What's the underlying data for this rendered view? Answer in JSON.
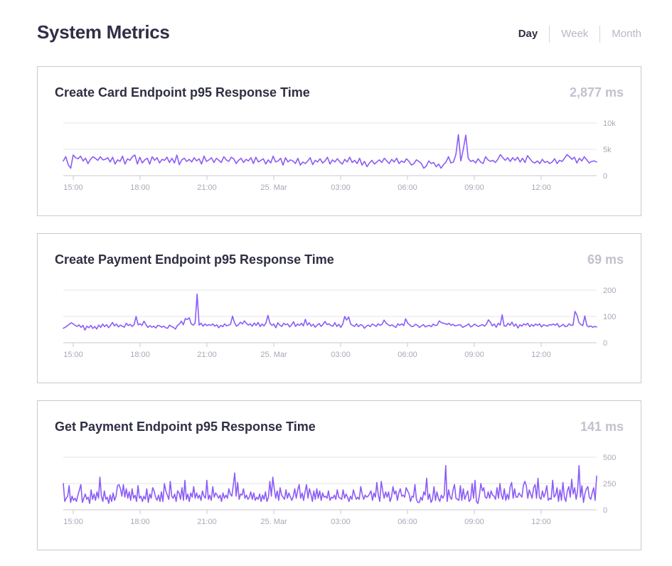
{
  "page": {
    "title": "System Metrics"
  },
  "range_tabs": [
    {
      "label": "Day",
      "active": true
    },
    {
      "label": "Week",
      "active": false
    },
    {
      "label": "Month",
      "active": false
    }
  ],
  "colors": {
    "line": "#8b5cf6",
    "grid": "#e6e6ec",
    "axis": "#c9c9d1",
    "muted": "#c2c2cf"
  },
  "chart_data": [
    {
      "type": "line",
      "title": "Create Card Endpoint p95 Response Time",
      "current_value": "2,877 ms",
      "x_ticks": [
        "15:00",
        "18:00",
        "21:00",
        "25. Mar",
        "03:00",
        "06:00",
        "09:00",
        "12:00"
      ],
      "y_ticks": [
        "0",
        "5k",
        "10k"
      ],
      "ylim": [
        0,
        10000
      ],
      "series": [
        {
          "values": [
            2800,
            3600,
            2100,
            1400,
            3900,
            3400,
            3200,
            3700,
            2800,
            3300,
            2300,
            3100,
            3600,
            3300,
            2900,
            3600,
            3000,
            3100,
            3400,
            2600,
            3500,
            2200,
            3000,
            2700,
            3700,
            2200,
            3200,
            2900,
            3600,
            3900,
            2200,
            3500,
            2400,
            3000,
            3300,
            2200,
            3600,
            2900,
            3400,
            2400,
            3100,
            2900,
            3500,
            2500,
            3300,
            2400,
            3900,
            2100,
            3000,
            3300,
            2700,
            3100,
            2600,
            3400,
            2800,
            3200,
            2200,
            3700,
            2700,
            3000,
            3400,
            2500,
            3300,
            2900,
            2500,
            3600,
            3000,
            2700,
            3500,
            3200,
            2300,
            2900,
            3300,
            2500,
            3100,
            2800,
            3400,
            2300,
            3500,
            2600,
            2900,
            3200,
            2200,
            3000,
            2400,
            3700,
            2600,
            2800,
            3300,
            2000,
            3400,
            2600,
            3000,
            2800,
            2300,
            3300,
            2000,
            2600,
            2300,
            2800,
            3400,
            2100,
            2900,
            2600,
            3200,
            2400,
            2800,
            3500,
            2200,
            3000,
            2600,
            3200,
            2600,
            2200,
            3100,
            2600,
            3500,
            2500,
            2900,
            2300,
            3300,
            2000,
            2700,
            1700,
            2400,
            2900,
            2200,
            2600,
            3000,
            2500,
            3300,
            2800,
            2300,
            3100,
            2600,
            3300,
            2300,
            2800,
            2500,
            3200,
            2700,
            2000,
            2300,
            3000,
            2700,
            2300,
            1400,
            1800,
            2800,
            2300,
            2500,
            1700,
            2200,
            1400,
            2100,
            2600,
            3600,
            2400,
            2600,
            4000,
            7800,
            2800,
            5000,
            7700,
            3300,
            2700,
            2900,
            2400,
            3200,
            2600,
            2300,
            3600,
            3000,
            2700,
            2900,
            2500,
            3100,
            4000,
            3400,
            2900,
            3400,
            2700,
            3400,
            2900,
            3500,
            2600,
            3300,
            2500,
            3800,
            3200,
            2600,
            2400,
            2800,
            2300,
            3100,
            2500,
            2700,
            2300,
            2600,
            3200,
            2300,
            2900,
            2700,
            3300,
            4000,
            3600,
            3100,
            3500,
            2400,
            3300,
            2800,
            3600,
            3000,
            2400,
            2700,
            2800,
            2600
          ]
        }
      ]
    },
    {
      "type": "line",
      "title": "Create Payment Endpoint p95 Response Time",
      "current_value": "69 ms",
      "x_ticks": [
        "15:00",
        "18:00",
        "21:00",
        "25. Mar",
        "03:00",
        "06:00",
        "09:00",
        "12:00"
      ],
      "y_ticks": [
        "0",
        "100",
        "200"
      ],
      "ylim": [
        0,
        200
      ],
      "series": [
        {
          "values": [
            55,
            59,
            64,
            70,
            76,
            72,
            66,
            62,
            68,
            58,
            66,
            48,
            63,
            57,
            66,
            54,
            62,
            52,
            67,
            58,
            71,
            61,
            69,
            57,
            66,
            77,
            64,
            71,
            60,
            67,
            63,
            59,
            74,
            65,
            70,
            62,
            69,
            100,
            68,
            72,
            66,
            82,
            69,
            58,
            65,
            59,
            63,
            56,
            66,
            64,
            59,
            63,
            57,
            55,
            67,
            62,
            58,
            52,
            66,
            71,
            82,
            68,
            92,
            88,
            95,
            72,
            67,
            75,
            185,
            67,
            74,
            63,
            71,
            65,
            69,
            66,
            71,
            63,
            68,
            57,
            66,
            61,
            72,
            64,
            67,
            70,
            101,
            76,
            63,
            68,
            78,
            71,
            83,
            74,
            67,
            72,
            63,
            75,
            66,
            77,
            62,
            71,
            64,
            76,
            104,
            74,
            66,
            71,
            57,
            76,
            67,
            62,
            74,
            68,
            72,
            60,
            68,
            80,
            62,
            71,
            66,
            74,
            64,
            89,
            67,
            76,
            63,
            70,
            59,
            67,
            73,
            62,
            70,
            81,
            69,
            72,
            65,
            63,
            76,
            62,
            70,
            58,
            71,
            100,
            86,
            98,
            71,
            66,
            62,
            72,
            61,
            69,
            66,
            55,
            63,
            67,
            61,
            71,
            67,
            62,
            72,
            66,
            70,
            86,
            75,
            69,
            64,
            68,
            63,
            58,
            72,
            66,
            72,
            65,
            91,
            74,
            68,
            61,
            63,
            70,
            66,
            58,
            64,
            69,
            60,
            64,
            66,
            61,
            71,
            65,
            67,
            83,
            77,
            74,
            73,
            69,
            74,
            66,
            70,
            64,
            66,
            68,
            67,
            58,
            63,
            66,
            72,
            60,
            64,
            71,
            65,
            62,
            66,
            69,
            63,
            70,
            87,
            78,
            64,
            71,
            59,
            74,
            67,
            106,
            64,
            63,
            74,
            66,
            78,
            63,
            71,
            56,
            68,
            63,
            72,
            67,
            74,
            61,
            69,
            63,
            71,
            66,
            72,
            60,
            68,
            66,
            63,
            69,
            67,
            71,
            66,
            73,
            60,
            64,
            70,
            61,
            63,
            72,
            66,
            67,
            119,
            106,
            77,
            69,
            65,
            102,
            66,
            60,
            64,
            59,
            62,
            60
          ]
        }
      ]
    },
    {
      "type": "line",
      "title": "Get Payment Endpoint p95 Response Time",
      "current_value": "141 ms",
      "x_ticks": [
        "15:00",
        "18:00",
        "21:00",
        "25. Mar",
        "03:00",
        "06:00",
        "09:00",
        "12:00"
      ],
      "y_ticks": [
        "0",
        "250",
        "500"
      ],
      "ylim": [
        0,
        500
      ],
      "series": [
        {
          "values": [
            250,
            80,
            110,
            130,
            230,
            70,
            130,
            90,
            110,
            80,
            140,
            190,
            240,
            70,
            110,
            150,
            100,
            120,
            60,
            190,
            100,
            150,
            90,
            170,
            110,
            310,
            130,
            80,
            180,
            100,
            120,
            60,
            140,
            80,
            160,
            90,
            130,
            230,
            240,
            200,
            130,
            240,
            120,
            200,
            110,
            170,
            90,
            200,
            110,
            140,
            80,
            230,
            110,
            130,
            80,
            130,
            100,
            200,
            70,
            150,
            110,
            210,
            180,
            120,
            90,
            140,
            80,
            170,
            80,
            250,
            180,
            140,
            100,
            270,
            130,
            110,
            150,
            80,
            180,
            160,
            100,
            210,
            90,
            280,
            100,
            150,
            80,
            160,
            120,
            220,
            110,
            160,
            110,
            140,
            90,
            180,
            130,
            110,
            280,
            100,
            140,
            90,
            220,
            120,
            160,
            140,
            110,
            140,
            80,
            160,
            110,
            140,
            110,
            200,
            150,
            130,
            230,
            350,
            130,
            260,
            100,
            150,
            140,
            200,
            110,
            140,
            100,
            120,
            170,
            100,
            160,
            90,
            120,
            100,
            150,
            80,
            140,
            100,
            170,
            80,
            120,
            270,
            130,
            310,
            200,
            110,
            180,
            90,
            210,
            140,
            120,
            100,
            190,
            110,
            160,
            120,
            90,
            130,
            200,
            110,
            190,
            240,
            110,
            160,
            90,
            170,
            240,
            110,
            200,
            150,
            80,
            180,
            100,
            200,
            110,
            180,
            90,
            160,
            120,
            130,
            110,
            180,
            90,
            120,
            110,
            140,
            100,
            190,
            120,
            110,
            100,
            190,
            110,
            150,
            120,
            80,
            130,
            100,
            190,
            140,
            100,
            120,
            100,
            220,
            150,
            100,
            140,
            120,
            130,
            150,
            180,
            90,
            160,
            120,
            260,
            140,
            80,
            270,
            180,
            110,
            170,
            120,
            170,
            80,
            120,
            220,
            150,
            180,
            90,
            160,
            200,
            130,
            140,
            120,
            210,
            180,
            150,
            80,
            130,
            120,
            240,
            100,
            70,
            70,
            120,
            90,
            170,
            140,
            300,
            100,
            150,
            70,
            100,
            220,
            90,
            170,
            110,
            80,
            140,
            110,
            140,
            420,
            80,
            190,
            120,
            100,
            190,
            240,
            110,
            100,
            90,
            230,
            90,
            200,
            100,
            140,
            180,
            80,
            100,
            250,
            110,
            280,
            80,
            60,
            140,
            250,
            180,
            210,
            120,
            110,
            170,
            110,
            180,
            140,
            130,
            100,
            210,
            110,
            250,
            140,
            100,
            200,
            90,
            150,
            100,
            220,
            260,
            110,
            200,
            120,
            120,
            160,
            140,
            120,
            230,
            270,
            230,
            110,
            190,
            150,
            110,
            210,
            240,
            110,
            300,
            120,
            100,
            180,
            120,
            160,
            230,
            90,
            110,
            100,
            280,
            120,
            140,
            210,
            80,
            190,
            90,
            260,
            120,
            80,
            180,
            220,
            120,
            290,
            150,
            210,
            100,
            180,
            420,
            120,
            230,
            70,
            150,
            200,
            220,
            120,
            100,
            160,
            210,
            90,
            320
          ]
        }
      ]
    }
  ]
}
